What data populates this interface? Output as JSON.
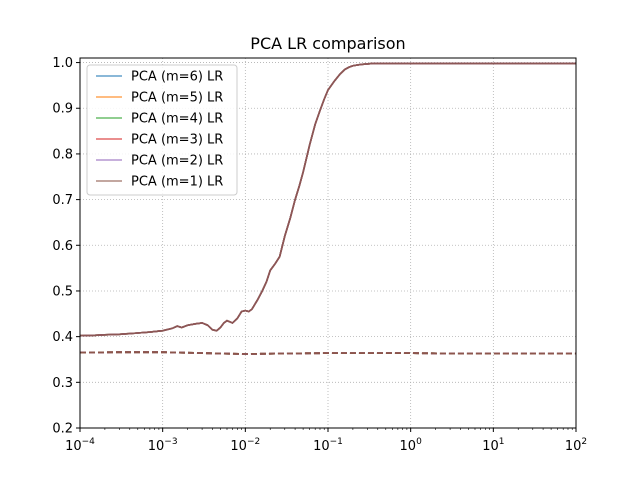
{
  "chart_data": {
    "type": "line",
    "title": "PCA LR comparison",
    "xlabel": "",
    "ylabel": "",
    "x_scale": "log",
    "xlim": [
      0.0001,
      100
    ],
    "ylim": [
      0.2,
      1.01
    ],
    "x_ticks": [
      {
        "value": 0.0001,
        "base": "10",
        "exp": "−4"
      },
      {
        "value": 0.001,
        "base": "10",
        "exp": "−3"
      },
      {
        "value": 0.01,
        "base": "10",
        "exp": "−2"
      },
      {
        "value": 0.1,
        "base": "10",
        "exp": "−1"
      },
      {
        "value": 1,
        "base": "10",
        "exp": "0"
      },
      {
        "value": 10,
        "base": "10",
        "exp": "1"
      },
      {
        "value": 100,
        "base": "10",
        "exp": "2"
      }
    ],
    "y_ticks": [
      "0.2",
      "0.3",
      "0.4",
      "0.5",
      "0.6",
      "0.7",
      "0.8",
      "0.9",
      "1.0"
    ],
    "grid": true,
    "legend_position": "top-left",
    "series": [
      {
        "name": "PCA (m=6) LR",
        "color": "#1f77b4"
      },
      {
        "name": "PCA (m=5) LR",
        "color": "#ff7f0e"
      },
      {
        "name": "PCA (m=4) LR",
        "color": "#2ca02c"
      },
      {
        "name": "PCA (m=3) LR",
        "color": "#d62728"
      },
      {
        "name": "PCA (m=2) LR",
        "color": "#9467bd"
      },
      {
        "name": "PCA (m=1) LR",
        "color": "#8c564b"
      }
    ],
    "solid_line": {
      "x": [
        0.0001,
        0.00015,
        0.0002,
        0.0003,
        0.0005,
        0.0007,
        0.001,
        0.0013,
        0.0015,
        0.0017,
        0.002,
        0.0025,
        0.003,
        0.0035,
        0.004,
        0.0045,
        0.005,
        0.0055,
        0.006,
        0.007,
        0.008,
        0.009,
        0.01,
        0.011,
        0.012,
        0.014,
        0.016,
        0.018,
        0.02,
        0.023,
        0.026,
        0.03,
        0.035,
        0.04,
        0.045,
        0.05,
        0.06,
        0.07,
        0.08,
        0.09,
        0.1,
        0.12,
        0.14,
        0.16,
        0.18,
        0.2,
        0.25,
        0.3,
        0.35,
        0.4,
        0.45,
        0.5,
        1,
        10,
        100
      ],
      "y": [
        0.402,
        0.403,
        0.404,
        0.405,
        0.408,
        0.41,
        0.413,
        0.418,
        0.423,
        0.42,
        0.425,
        0.428,
        0.43,
        0.425,
        0.415,
        0.413,
        0.42,
        0.43,
        0.435,
        0.43,
        0.44,
        0.455,
        0.457,
        0.455,
        0.46,
        0.48,
        0.5,
        0.52,
        0.545,
        0.56,
        0.575,
        0.62,
        0.66,
        0.7,
        0.73,
        0.76,
        0.82,
        0.865,
        0.895,
        0.92,
        0.94,
        0.96,
        0.975,
        0.985,
        0.99,
        0.993,
        0.996,
        0.997,
        0.998,
        0.998,
        0.998,
        0.998,
        0.998,
        0.998,
        0.998
      ]
    },
    "dashed_line": {
      "x": [
        0.0001,
        0.0003,
        0.001,
        0.003,
        0.01,
        0.03,
        0.1,
        0.3,
        1,
        3,
        10,
        30,
        100
      ],
      "y": [
        0.365,
        0.366,
        0.366,
        0.364,
        0.362,
        0.363,
        0.364,
        0.364,
        0.364,
        0.363,
        0.363,
        0.363,
        0.363
      ]
    }
  }
}
